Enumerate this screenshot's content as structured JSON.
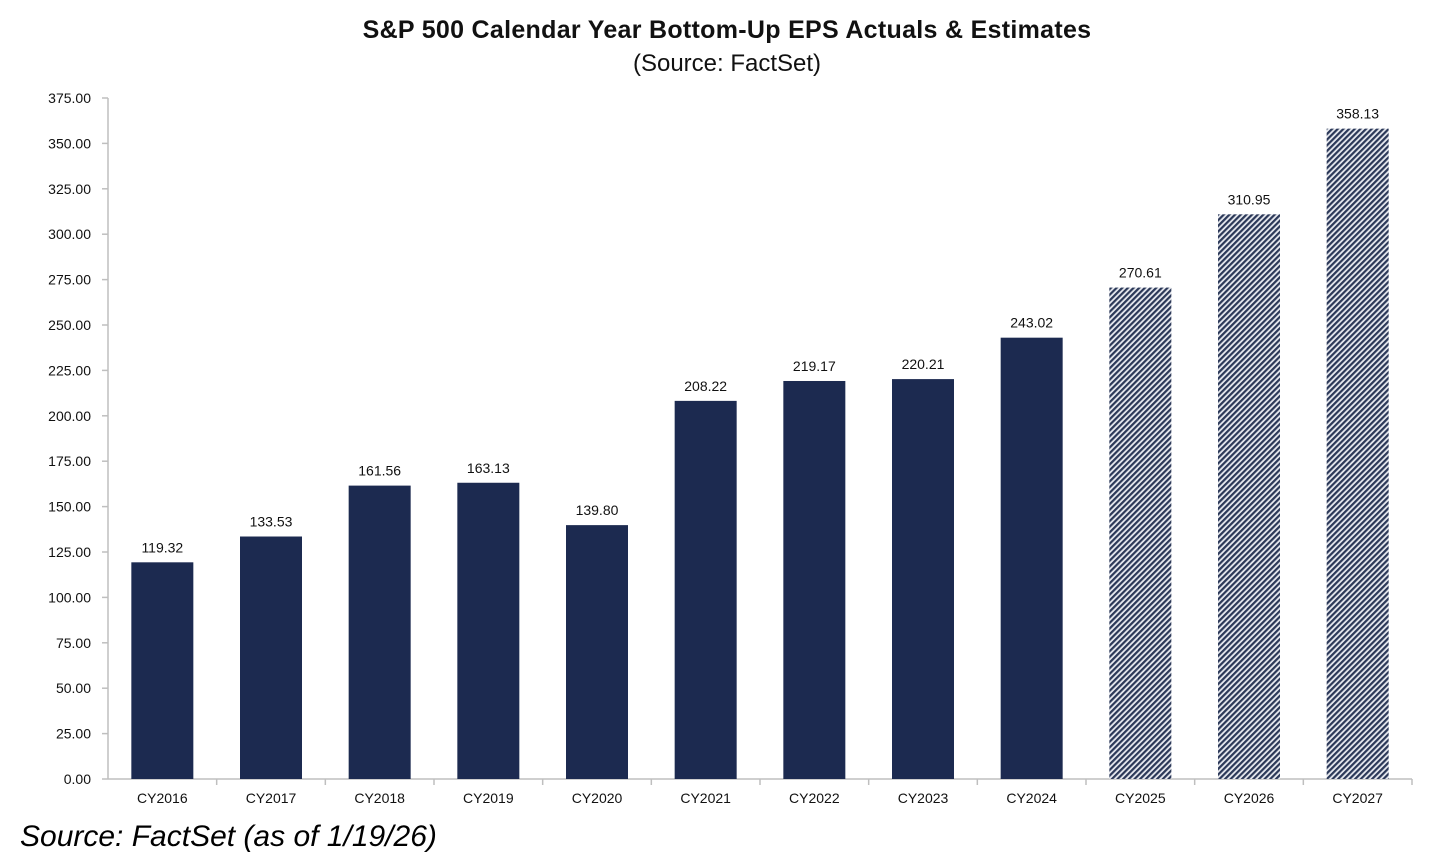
{
  "chart_data": {
    "type": "bar",
    "title": "S&P 500 Calendar Year Bottom-Up EPS Actuals & Estimates",
    "subtitle": "(Source: FactSet)",
    "xlabel": "",
    "ylabel": "",
    "ylim": [
      0,
      375
    ],
    "yticks": [
      "0.00",
      "25.00",
      "50.00",
      "75.00",
      "100.00",
      "125.00",
      "150.00",
      "175.00",
      "200.00",
      "225.00",
      "250.00",
      "275.00",
      "300.00",
      "325.00",
      "350.00",
      "375.00"
    ],
    "categories": [
      "CY2016",
      "CY2017",
      "CY2018",
      "CY2019",
      "CY2020",
      "CY2021",
      "CY2022",
      "CY2023",
      "CY2024",
      "CY2025",
      "CY2026",
      "CY2027"
    ],
    "values": [
      119.32,
      133.53,
      161.56,
      163.13,
      139.8,
      208.22,
      219.17,
      220.21,
      243.02,
      270.61,
      310.95,
      358.13
    ],
    "value_labels": [
      "119.32",
      "133.53",
      "161.56",
      "163.13",
      "139.80",
      "208.22",
      "219.17",
      "220.21",
      "243.02",
      "270.61",
      "310.95",
      "358.13"
    ],
    "bar_style": [
      "solid",
      "solid",
      "solid",
      "solid",
      "solid",
      "solid",
      "solid",
      "solid",
      "solid",
      "hatched",
      "hatched",
      "hatched"
    ],
    "grid": false,
    "legend": "none",
    "colors": {
      "actual": "#1c2a50",
      "estimate_stripe": "#2b3858",
      "estimate_bg": "#e8eaf0",
      "axis": "#bfbfbf",
      "text": "#111111"
    }
  },
  "footnote": "Source: FactSet (as of 1/19/26)"
}
